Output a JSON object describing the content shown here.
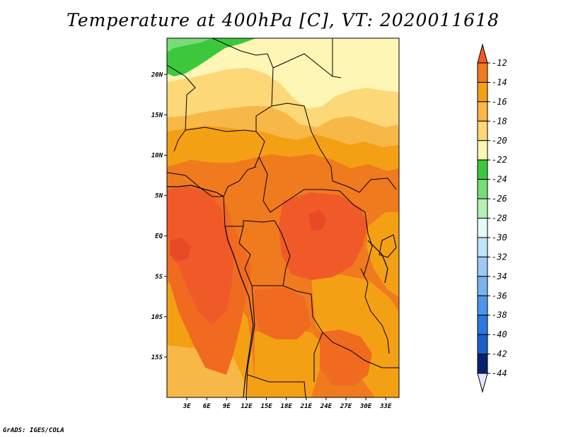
{
  "title": "Temperature at 400hPa [C], VT: 2020011618",
  "credit": "GrADS: IGES/COLA",
  "chart_data": {
    "type": "heatmap",
    "variable": "Temperature",
    "level": "400hPa",
    "units": "C",
    "valid_time": "2020011618",
    "lon_range": [
      0,
      35
    ],
    "lat_range": [
      -20,
      24.5
    ],
    "x_ticks": [
      "3E",
      "6E",
      "9E",
      "12E",
      "15E",
      "18E",
      "21E",
      "24E",
      "27E",
      "30E",
      "33E"
    ],
    "y_ticks": [
      "20N",
      "15N",
      "10N",
      "5N",
      "EQ",
      "5S",
      "10S",
      "15S"
    ],
    "colorbar": {
      "levels": [
        "-12",
        "-14",
        "-16",
        "-18",
        "-20",
        "-22",
        "-24",
        "-26",
        "-28",
        "-30",
        "-32",
        "-34",
        "-36",
        "-38",
        "-40",
        "-42",
        "-44"
      ],
      "colors": [
        "#f05a28",
        "#f07a1e",
        "#f4a014",
        "#f8b848",
        "#fcd878",
        "#fef6b4",
        "#3cc83c",
        "#78dc78",
        "#b4f0b4",
        "#e6fafa",
        "#c0e4f8",
        "#9ccaf4",
        "#78b4f0",
        "#4c96e8",
        "#2c78dc",
        "#1c60c8",
        "#0a1f70",
        "#e6e6ff"
      ]
    }
  }
}
